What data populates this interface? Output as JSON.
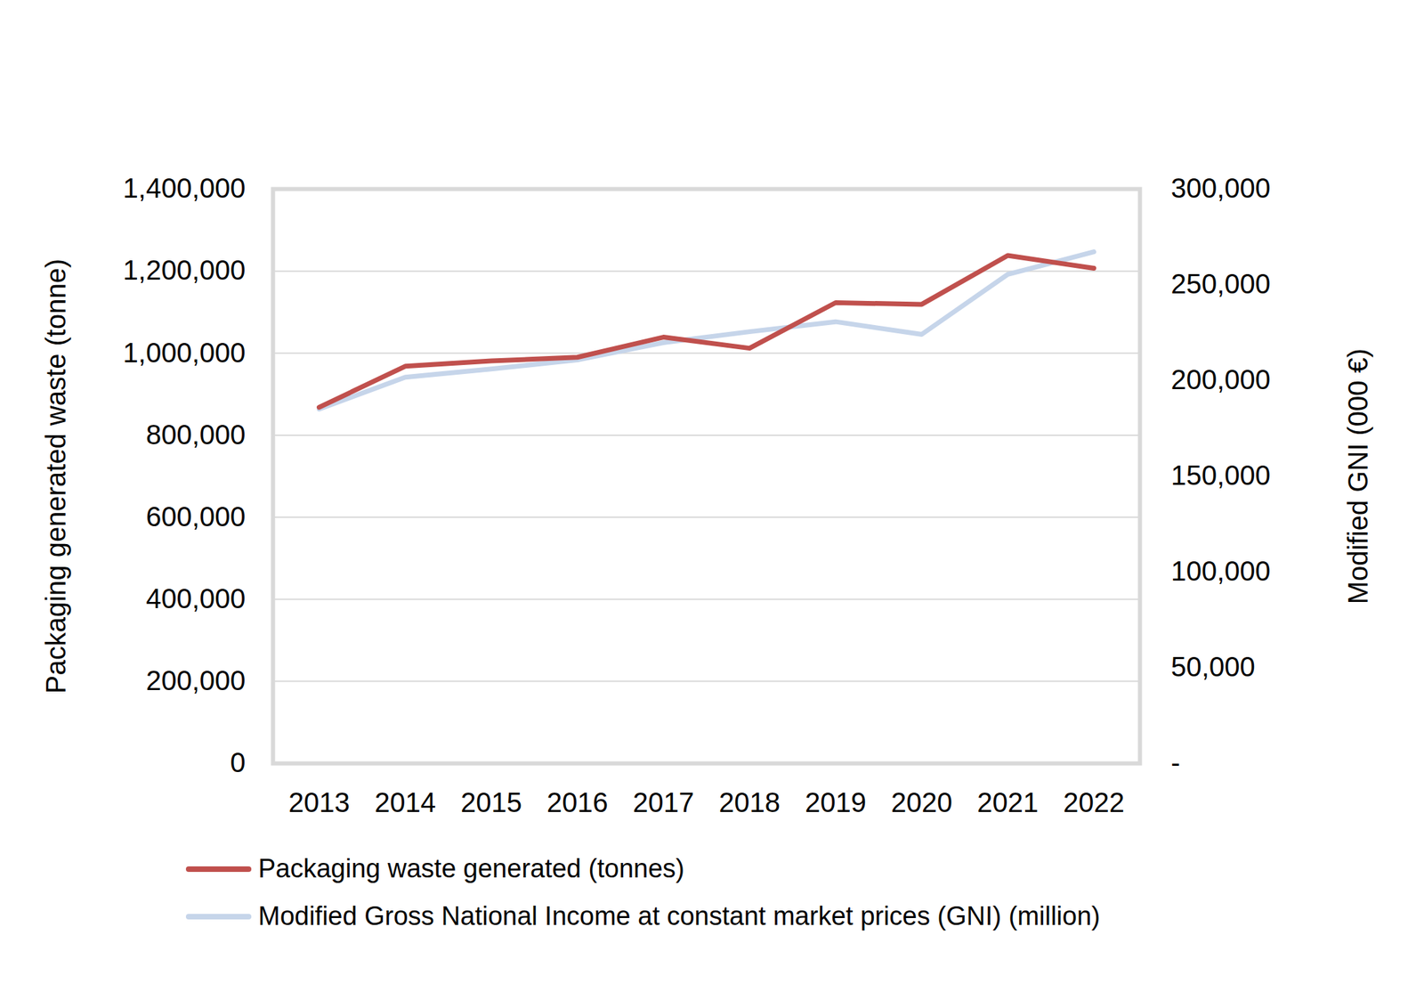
{
  "chart_data": {
    "type": "line",
    "categories": [
      "2013",
      "2014",
      "2015",
      "2016",
      "2017",
      "2018",
      "2019",
      "2020",
      "2021",
      "2022"
    ],
    "ylabel": "Packaging generated waste (tonne)",
    "y2label": "Modified GNI (000 €)",
    "ylim": [
      0,
      1400000
    ],
    "yticks": [
      0,
      {
        "value": 200000,
        "label": "200,000"
      },
      {
        "value": 400000,
        "label": "400,000"
      },
      {
        "value": 600000,
        "label": "600,000"
      },
      {
        "value": 800000,
        "label": "800,000"
      },
      {
        "value": 1000000,
        "label": "1,000,000"
      },
      {
        "value": 1200000,
        "label": "1,200,000"
      },
      {
        "value": 1400000,
        "label": "1,400,000"
      }
    ],
    "y2lim": [
      0,
      300000
    ],
    "y2ticks": [
      {
        "value": 0,
        "label": "-"
      },
      {
        "value": 50000,
        "label": "50,000"
      },
      {
        "value": 100000,
        "label": "100,000"
      },
      {
        "value": 150000,
        "label": "150,000"
      },
      {
        "value": 200000,
        "label": "200,000"
      },
      {
        "value": 250000,
        "label": "250,000"
      },
      {
        "value": 300000,
        "label": "300,000"
      }
    ],
    "grid": true,
    "legend": "bottom",
    "series": [
      {
        "name": "Packaging waste generated (tonnes)",
        "color": "#c0504d",
        "values": [
          868000,
          968000,
          981000,
          990000,
          1039000,
          1012000,
          1123000,
          1119000,
          1238000,
          1207000
        ]
      },
      {
        "name": "Modified Gross National Income at constant market prices (GNI) (million)",
        "color": "#c6d5ea",
        "axis": "y2",
        "values": [
          185100,
          201700,
          206000,
          210800,
          219800,
          225500,
          230700,
          224100,
          255400,
          267200
        ]
      }
    ]
  }
}
